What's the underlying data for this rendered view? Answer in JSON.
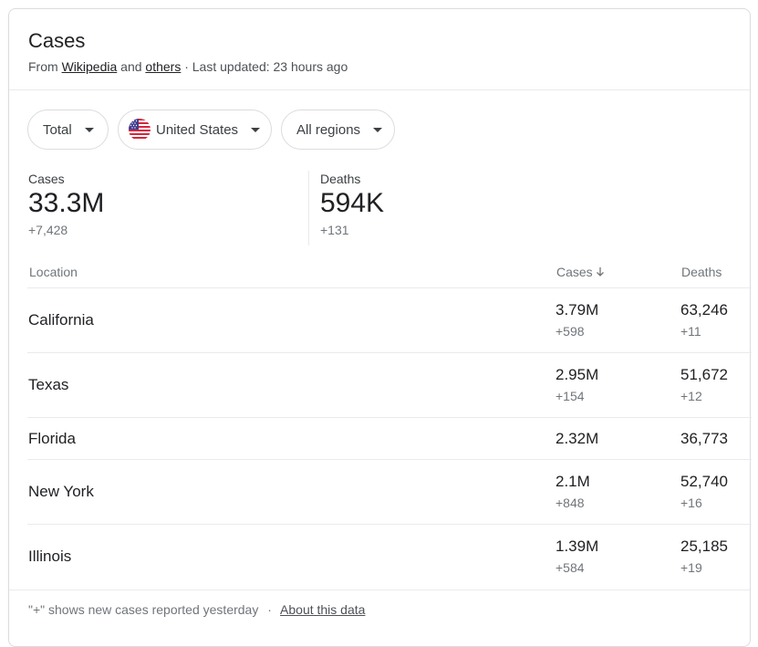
{
  "card": {
    "title": "Cases",
    "source_prefix": "From",
    "source_link1": "Wikipedia",
    "source_and": "and",
    "source_link2": "others",
    "updated": "· Last updated: 23 hours ago"
  },
  "filters": {
    "type": "Total",
    "country": "United States",
    "region": "All regions"
  },
  "summary": {
    "cases_label": "Cases",
    "cases_value": "33.3M",
    "cases_delta": "+7,428",
    "deaths_label": "Deaths",
    "deaths_value": "594K",
    "deaths_delta": "+131"
  },
  "table": {
    "headers": {
      "location": "Location",
      "cases": "Cases",
      "deaths": "Deaths"
    },
    "rows": [
      {
        "location": "California",
        "cases": "3.79M",
        "cases_delta": "+598",
        "deaths": "63,246",
        "deaths_delta": "+11"
      },
      {
        "location": "Texas",
        "cases": "2.95M",
        "cases_delta": "+154",
        "deaths": "51,672",
        "deaths_delta": "+12"
      },
      {
        "location": "Florida",
        "cases": "2.32M",
        "cases_delta": "",
        "deaths": "36,773",
        "deaths_delta": ""
      },
      {
        "location": "New York",
        "cases": "2.1M",
        "cases_delta": "+848",
        "deaths": "52,740",
        "deaths_delta": "+16"
      },
      {
        "location": "Illinois",
        "cases": "1.39M",
        "cases_delta": "+584",
        "deaths": "25,185",
        "deaths_delta": "+19"
      }
    ]
  },
  "footer": {
    "note": "\"+\" shows new cases reported yesterday",
    "separator": "·",
    "link": "About this data"
  },
  "icons": {
    "sort": "arrow-down-icon",
    "dropdown": "caret-down-icon",
    "flag": "us-flag-icon"
  },
  "colors": {
    "text": "#202124",
    "secondary": "#70757a",
    "border": "#dadce0"
  }
}
